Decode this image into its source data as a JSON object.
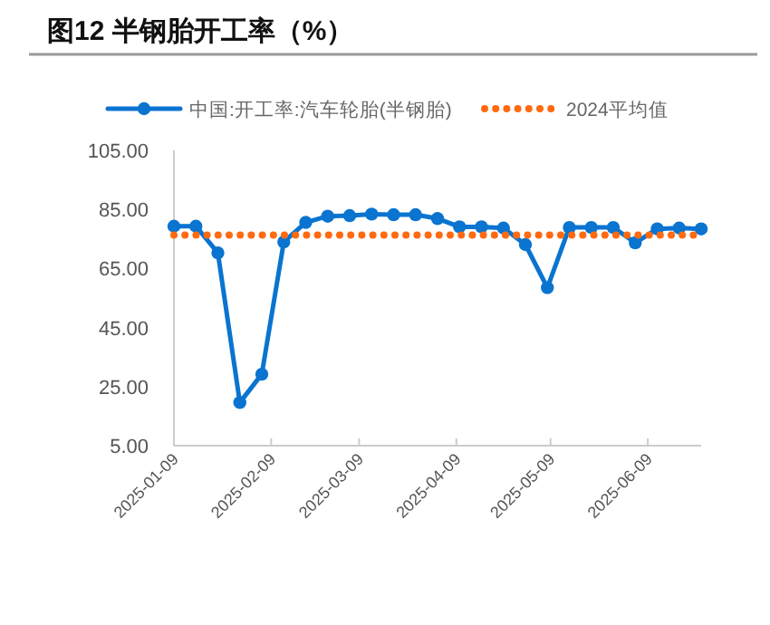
{
  "chart_data": {
    "type": "line",
    "title": "图12 半钢胎开工率（%）",
    "x": [
      "2025-01-09",
      "2025-01-16",
      "2025-01-23",
      "2025-01-30",
      "2025-02-06",
      "2025-02-13",
      "2025-02-20",
      "2025-02-27",
      "2025-03-06",
      "2025-03-13",
      "2025-03-20",
      "2025-03-27",
      "2025-04-03",
      "2025-04-10",
      "2025-04-17",
      "2025-04-24",
      "2025-05-01",
      "2025-05-08",
      "2025-05-15",
      "2025-05-22",
      "2025-05-29",
      "2025-06-05",
      "2025-06-12",
      "2025-06-19",
      "2025-06-26"
    ],
    "series": [
      {
        "name": "中国:开工率:汽车轮胎(半钢胎)",
        "color": "#0a74d0",
        "marker": "circle",
        "line_style": "solid",
        "values": [
          79.3,
          79.3,
          70.3,
          19.6,
          29.2,
          74.0,
          80.6,
          82.7,
          82.9,
          83.4,
          83.2,
          83.2,
          81.9,
          79.1,
          79.1,
          78.7,
          73.1,
          58.5,
          78.9,
          78.9,
          78.9,
          73.7,
          78.4,
          78.7,
          78.4
        ]
      },
      {
        "name": "2024平均值",
        "color": "#ff6a10",
        "marker": "none",
        "line_style": "dotted",
        "values": [
          76.3,
          76.3,
          76.3,
          76.3,
          76.3,
          76.3,
          76.3,
          76.3,
          76.3,
          76.3,
          76.3,
          76.3,
          76.3,
          76.3,
          76.3,
          76.3,
          76.3,
          76.3,
          76.3,
          76.3,
          76.3,
          76.3,
          76.3,
          76.3,
          76.3
        ]
      }
    ],
    "xlim": [
      "2025-01-09",
      "2025-06-26"
    ],
    "xticks": [
      {
        "value": "2025-01-09",
        "label": "2025-01-09"
      },
      {
        "value": "2025-02-09",
        "label": "2025-02-09"
      },
      {
        "value": "2025-03-09",
        "label": "2025-03-09"
      },
      {
        "value": "2025-04-09",
        "label": "2025-04-09"
      },
      {
        "value": "2025-05-09",
        "label": "2025-05-09"
      },
      {
        "value": "2025-06-09",
        "label": "2025-06-09"
      }
    ],
    "ylim": [
      5,
      105
    ],
    "yticks": [
      {
        "value": 5,
        "label": "5.00"
      },
      {
        "value": 25,
        "label": "25.00"
      },
      {
        "value": 45,
        "label": "45.00"
      },
      {
        "value": 65,
        "label": "65.00"
      },
      {
        "value": 85,
        "label": "85.00"
      },
      {
        "value": 105,
        "label": "105.00"
      }
    ],
    "grid": false,
    "legend": "top"
  }
}
